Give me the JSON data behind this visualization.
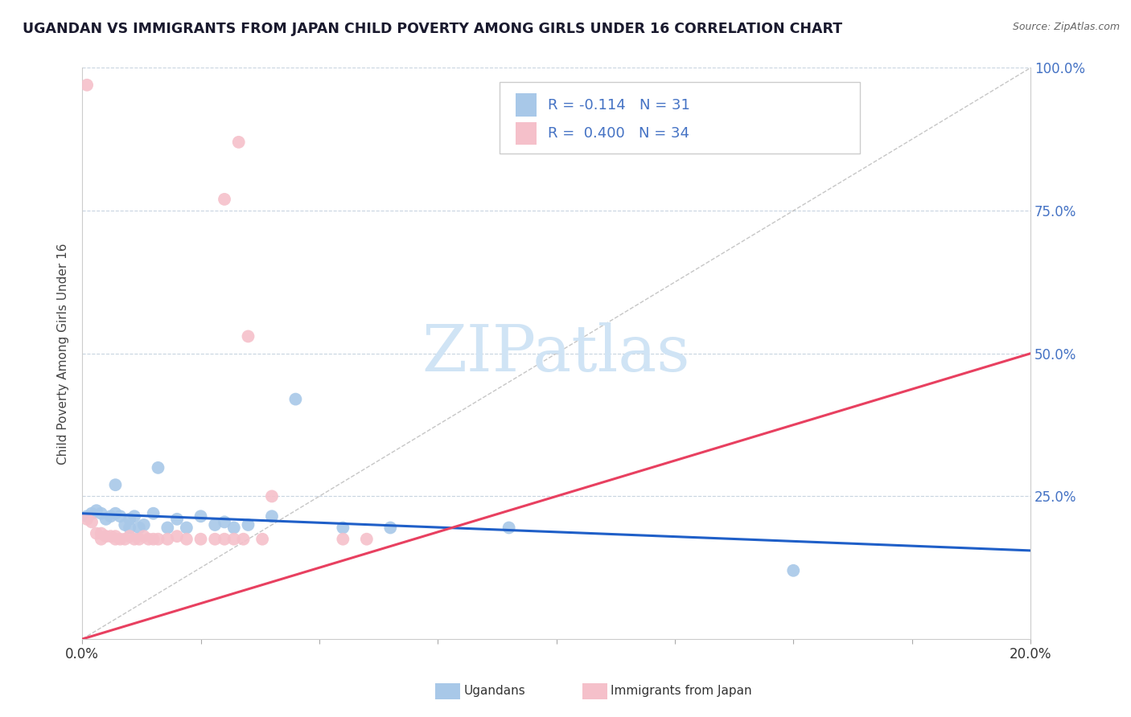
{
  "title": "UGANDAN VS IMMIGRANTS FROM JAPAN CHILD POVERTY AMONG GIRLS UNDER 16 CORRELATION CHART",
  "source": "Source: ZipAtlas.com",
  "ylabel": "Child Poverty Among Girls Under 16",
  "xlim": [
    0.0,
    0.2
  ],
  "ylim": [
    0.0,
    1.0
  ],
  "xticks": [
    0.0,
    0.025,
    0.05,
    0.075,
    0.1,
    0.125,
    0.15,
    0.175,
    0.2
  ],
  "xtick_labels": [
    "0.0%",
    "",
    "",
    "",
    "",
    "",
    "",
    "",
    "20.0%"
  ],
  "yticks": [
    0.0,
    0.25,
    0.5,
    0.75,
    1.0
  ],
  "ytick_labels": [
    "",
    "25.0%",
    "50.0%",
    "75.0%",
    "100.0%"
  ],
  "ugandan_R": -0.114,
  "ugandan_N": 31,
  "japan_R": 0.4,
  "japan_N": 34,
  "ugandan_color": "#a8c8e8",
  "japan_color": "#f5c0ca",
  "ugandan_line_color": "#1f5fc8",
  "japan_line_color": "#e84060",
  "watermark": "ZIPatlas",
  "watermark_color": "#d0e4f5",
  "legend_text_color": "#4472c4",
  "background_color": "#ffffff",
  "ugandan_scatter": [
    [
      0.001,
      0.215
    ],
    [
      0.002,
      0.22
    ],
    [
      0.003,
      0.225
    ],
    [
      0.004,
      0.22
    ],
    [
      0.005,
      0.21
    ],
    [
      0.006,
      0.215
    ],
    [
      0.007,
      0.22
    ],
    [
      0.007,
      0.27
    ],
    [
      0.008,
      0.215
    ],
    [
      0.009,
      0.2
    ],
    [
      0.01,
      0.21
    ],
    [
      0.01,
      0.195
    ],
    [
      0.011,
      0.215
    ],
    [
      0.012,
      0.195
    ],
    [
      0.013,
      0.2
    ],
    [
      0.015,
      0.22
    ],
    [
      0.016,
      0.3
    ],
    [
      0.018,
      0.195
    ],
    [
      0.02,
      0.21
    ],
    [
      0.022,
      0.195
    ],
    [
      0.025,
      0.215
    ],
    [
      0.028,
      0.2
    ],
    [
      0.03,
      0.205
    ],
    [
      0.032,
      0.195
    ],
    [
      0.035,
      0.2
    ],
    [
      0.04,
      0.215
    ],
    [
      0.045,
      0.42
    ],
    [
      0.055,
      0.195
    ],
    [
      0.065,
      0.195
    ],
    [
      0.09,
      0.195
    ],
    [
      0.15,
      0.12
    ]
  ],
  "japan_scatter": [
    [
      0.001,
      0.21
    ],
    [
      0.002,
      0.205
    ],
    [
      0.003,
      0.185
    ],
    [
      0.004,
      0.185
    ],
    [
      0.004,
      0.175
    ],
    [
      0.005,
      0.18
    ],
    [
      0.006,
      0.18
    ],
    [
      0.007,
      0.175
    ],
    [
      0.007,
      0.18
    ],
    [
      0.008,
      0.175
    ],
    [
      0.009,
      0.175
    ],
    [
      0.01,
      0.18
    ],
    [
      0.011,
      0.175
    ],
    [
      0.012,
      0.175
    ],
    [
      0.013,
      0.18
    ],
    [
      0.014,
      0.175
    ],
    [
      0.015,
      0.175
    ],
    [
      0.016,
      0.175
    ],
    [
      0.018,
      0.175
    ],
    [
      0.02,
      0.18
    ],
    [
      0.022,
      0.175
    ],
    [
      0.025,
      0.175
    ],
    [
      0.028,
      0.175
    ],
    [
      0.03,
      0.175
    ],
    [
      0.032,
      0.175
    ],
    [
      0.034,
      0.175
    ],
    [
      0.038,
      0.175
    ],
    [
      0.04,
      0.25
    ],
    [
      0.055,
      0.175
    ],
    [
      0.06,
      0.175
    ],
    [
      0.03,
      0.77
    ],
    [
      0.033,
      0.87
    ],
    [
      0.035,
      0.53
    ],
    [
      0.001,
      0.97
    ]
  ],
  "ugandan_line": {
    "x0": 0.0,
    "y0": 0.22,
    "x1": 0.2,
    "y1": 0.155
  },
  "japan_line": {
    "x0": 0.0,
    "y0": 0.0,
    "x1": 0.2,
    "y1": 0.5
  },
  "diag_line": {
    "x0": 0.0,
    "y0": 0.0,
    "x1": 0.2,
    "y1": 1.0
  }
}
